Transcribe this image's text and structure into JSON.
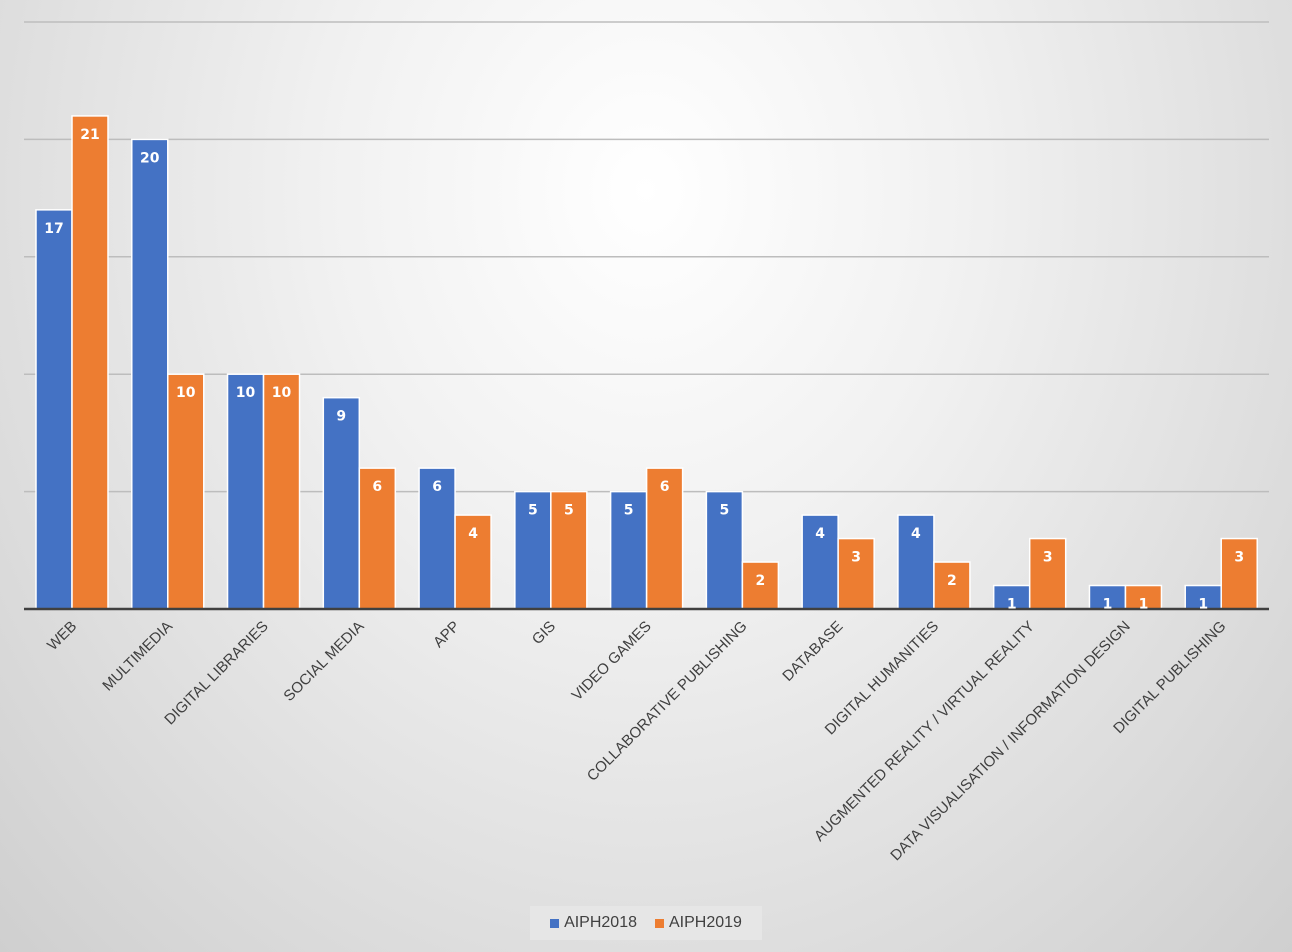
{
  "chart_data": {
    "type": "bar",
    "title": "",
    "xlabel": "",
    "ylabel": "",
    "ylim": [
      0,
      25
    ],
    "gridlines": [
      5,
      10,
      15,
      20,
      25
    ],
    "grid": true,
    "legend_position": "bottom",
    "categories": [
      "WEB",
      "MULTIMEDIA",
      "DIGITAL LIBRARIES",
      "SOCIAL MEDIA",
      "APP",
      "GIS",
      "VIDEO GAMES",
      "COLLABORATIVE PUBLISHING",
      "DATABASE",
      "DIGITAL HUMANITIES",
      "AUGMENTED REALITY / VIRTUAL REALITY",
      "DATA VISUALISATION / INFORMATION DESIGN",
      "DIGITAL PUBLISHING"
    ],
    "series": [
      {
        "name": "AIPH2018",
        "color": "#4472C4",
        "values": [
          17,
          20,
          10,
          9,
          6,
          5,
          5,
          5,
          4,
          4,
          1,
          1,
          1
        ]
      },
      {
        "name": "AIPH2019",
        "color": "#ED7D31",
        "values": [
          21,
          10,
          10,
          6,
          4,
          5,
          6,
          2,
          3,
          2,
          3,
          1,
          3
        ]
      }
    ]
  }
}
